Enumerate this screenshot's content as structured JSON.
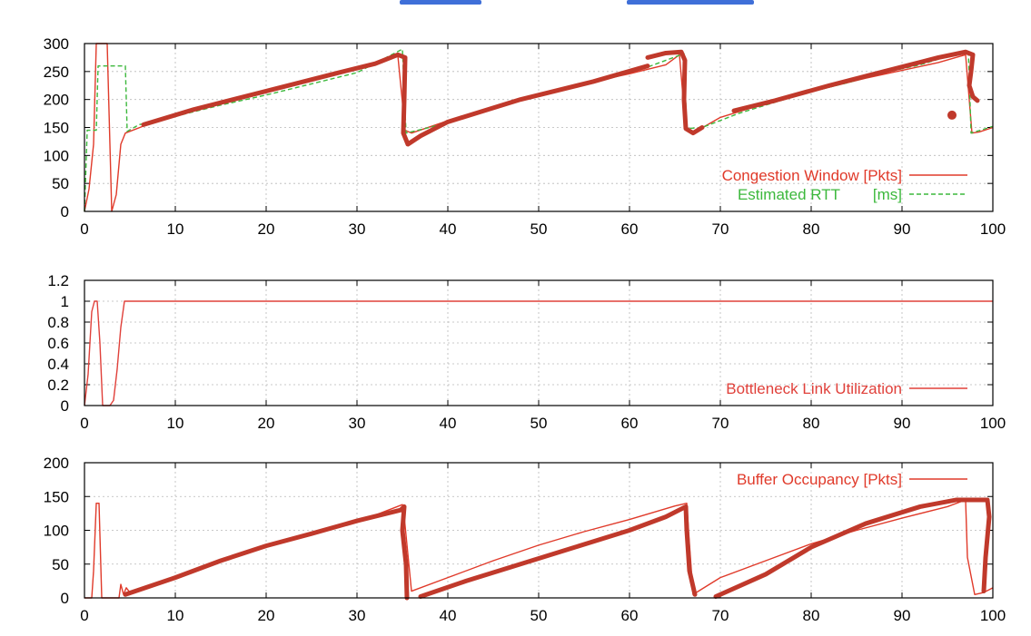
{
  "colors": {
    "cwnd": "#e03a2a",
    "rtt": "#3cb83c",
    "ink": "#c0392b",
    "util": "#e0403a",
    "buffer": "#e03a2a"
  },
  "chart_data": [
    {
      "type": "line",
      "xlim": [
        0,
        100
      ],
      "ylim": [
        0,
        300
      ],
      "xticks": [
        0,
        10,
        20,
        30,
        40,
        50,
        60,
        70,
        80,
        90,
        100
      ],
      "yticks": [
        0,
        50,
        100,
        150,
        200,
        250,
        300
      ],
      "grid": true,
      "legend_position": "bottom-right",
      "series": [
        {
          "name": "Congestion Window [Pkts]",
          "style": "solid",
          "x": [
            0,
            0.5,
            1,
            1.3,
            1.6,
            2.5,
            2.8,
            3,
            3.5,
            4,
            4.5,
            8,
            12,
            16,
            20,
            24,
            28,
            32,
            34.5,
            35.3,
            36,
            40,
            44,
            48,
            52,
            56,
            60,
            64,
            65.5,
            66.2,
            67,
            70,
            74,
            78,
            82,
            86,
            90,
            94,
            97,
            97.7,
            98.5,
            100
          ],
          "y": [
            0,
            40,
            120,
            300,
            300,
            300,
            120,
            0,
            30,
            120,
            140,
            162,
            182,
            200,
            215,
            232,
            248,
            262,
            278,
            145,
            140,
            162,
            180,
            200,
            216,
            232,
            246,
            262,
            280,
            145,
            140,
            168,
            188,
            206,
            222,
            238,
            252,
            266,
            280,
            140,
            142,
            150
          ]
        },
        {
          "name": "Estimated RTT",
          "unit": "[ms]",
          "style": "dashed",
          "x": [
            0,
            0.3,
            1.3,
            1.5,
            4.5,
            4.7,
            6,
            10,
            15,
            20,
            25,
            30,
            35,
            35.4,
            38,
            42,
            46,
            50,
            54,
            58,
            62,
            66,
            66.3,
            68,
            72,
            76,
            80,
            84,
            88,
            92,
            96,
            97.3,
            97.6,
            100
          ],
          "y": [
            0,
            145,
            145,
            260,
            260,
            143,
            155,
            170,
            190,
            208,
            228,
            248,
            290,
            140,
            150,
            170,
            190,
            210,
            225,
            243,
            258,
            282,
            148,
            150,
            175,
            195,
            214,
            230,
            248,
            262,
            282,
            288,
            140,
            152
          ]
        }
      ],
      "annotations_ink": [
        {
          "x": [
            6.5,
            10,
            15,
            20,
            25,
            30,
            34,
            35.2,
            35.3,
            35,
            35.6,
            37,
            40,
            45,
            50,
            55,
            60,
            62,
            64,
            65.7,
            66,
            66.1,
            66.5,
            67.3,
            68
          ]
        },
        {
          "x": [],
          "y": []
        }
      ]
    },
    {
      "type": "line",
      "xlim": [
        0,
        100
      ],
      "ylim": [
        0,
        1.2
      ],
      "xticks": [
        0,
        10,
        20,
        30,
        40,
        50,
        60,
        70,
        80,
        90,
        100
      ],
      "yticks": [
        0,
        0.2,
        0.4,
        0.6,
        0.8,
        1,
        1.2
      ],
      "grid": true,
      "legend_position": "bottom-right",
      "series": [
        {
          "name": "Bottleneck Link Utilization",
          "style": "solid",
          "x": [
            0,
            0.4,
            0.8,
            1.1,
            1.4,
            1.7,
            2.0,
            2.3,
            2.8,
            3.2,
            3.6,
            4.0,
            4.4,
            4.7,
            100
          ],
          "y": [
            0,
            0.3,
            0.9,
            1.0,
            1.0,
            0.6,
            0,
            0,
            0,
            0.05,
            0.35,
            0.75,
            1.0,
            1.0,
            1.0
          ]
        }
      ]
    },
    {
      "type": "line",
      "xlim": [
        0,
        100
      ],
      "ylim": [
        0,
        200
      ],
      "xticks": [
        0,
        10,
        20,
        30,
        40,
        50,
        60,
        70,
        80,
        90,
        100
      ],
      "yticks": [
        0,
        50,
        100,
        150,
        200
      ],
      "grid": true,
      "legend_position": "top-right",
      "series": [
        {
          "name": "Buffer Occupancy [Pkts]",
          "style": "solid",
          "x": [
            0,
            0.8,
            1.0,
            1.3,
            1.6,
            1.9,
            2.5,
            3.8,
            4.0,
            4.3,
            4.6,
            5,
            10,
            15,
            20,
            25,
            30,
            35,
            35.2,
            36,
            40,
            45,
            50,
            55,
            60,
            65,
            66.3,
            66.6,
            67,
            70,
            75,
            80,
            85,
            90,
            95,
            97,
            97.2,
            98,
            99,
            100
          ],
          "y": [
            0,
            0,
            40,
            140,
            140,
            0,
            0,
            0,
            20,
            5,
            15,
            8,
            30,
            55,
            75,
            95,
            112,
            138,
            120,
            10,
            30,
            55,
            78,
            98,
            116,
            136,
            140,
            80,
            5,
            30,
            55,
            80,
            100,
            118,
            135,
            145,
            60,
            5,
            8,
            15
          ]
        }
      ]
    }
  ]
}
